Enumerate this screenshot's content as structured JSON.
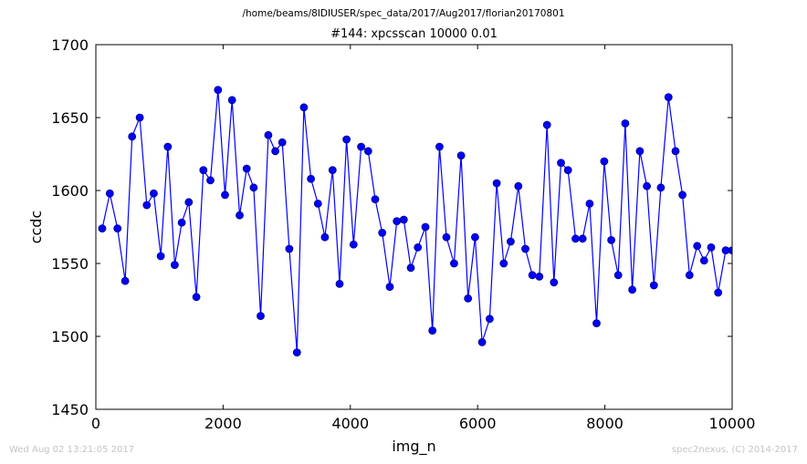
{
  "figure": {
    "suptitle": "/home/beams/8IDIUSER/spec_data/2017/Aug2017/florian20170801",
    "footer_left": "Wed Aug 02 13:21:05 2017",
    "footer_right": "spec2nexus, (C) 2014-2017"
  },
  "colors": {
    "line": "#0000ff",
    "marker_fill": "#0000ff",
    "marker_edge": "#000080",
    "axes": "#000000",
    "footer_text": "#c4c4c4"
  },
  "chart_data": {
    "type": "line",
    "title": "#144: xpcsscan 10000 0.01",
    "xlabel": "img_n",
    "ylabel": "ccdc",
    "xlim": [
      0,
      10000
    ],
    "ylim": [
      1450,
      1700
    ],
    "xticks": [
      0,
      2000,
      4000,
      6000,
      8000,
      10000
    ],
    "yticks": [
      1450,
      1500,
      1550,
      1600,
      1650,
      1700
    ],
    "grid": false,
    "legend": "none",
    "marker": "circle",
    "x": [
      100,
      220,
      340,
      460,
      570,
      690,
      800,
      910,
      1020,
      1130,
      1240,
      1350,
      1460,
      1580,
      1690,
      1800,
      1920,
      2030,
      2140,
      2260,
      2370,
      2480,
      2590,
      2710,
      2820,
      2930,
      3040,
      3160,
      3270,
      3380,
      3490,
      3600,
      3720,
      3830,
      3940,
      4050,
      4170,
      4280,
      4390,
      4500,
      4620,
      4730,
      4840,
      4950,
      5060,
      5180,
      5290,
      5400,
      5510,
      5630,
      5740,
      5850,
      5960,
      6070,
      6190,
      6300,
      6410,
      6520,
      6640,
      6750,
      6860,
      6970,
      7090,
      7200,
      7310,
      7420,
      7540,
      7650,
      7760,
      7870,
      7990,
      8100,
      8210,
      8320,
      8430,
      8550,
      8660,
      8770,
      8880,
      9000,
      9110,
      9220,
      9330,
      9450,
      9560,
      9670,
      9780,
      9900,
      10000
    ],
    "y": [
      1574,
      1598,
      1574,
      1538,
      1637,
      1650,
      1590,
      1598,
      1555,
      1630,
      1549,
      1578,
      1592,
      1527,
      1614,
      1607,
      1669,
      1597,
      1662,
      1583,
      1615,
      1602,
      1514,
      1638,
      1627,
      1633,
      1560,
      1489,
      1657,
      1608,
      1591,
      1568,
      1614,
      1536,
      1635,
      1563,
      1630,
      1627,
      1594,
      1571,
      1534,
      1579,
      1580,
      1547,
      1561,
      1575,
      1504,
      1630,
      1568,
      1550,
      1624,
      1526,
      1568,
      1496,
      1512,
      1605,
      1550,
      1565,
      1603,
      1560,
      1542,
      1541,
      1645,
      1537,
      1619,
      1614,
      1567,
      1567,
      1591,
      1509,
      1620,
      1566,
      1542,
      1646,
      1532,
      1627,
      1603,
      1535,
      1602,
      1664,
      1627,
      1597,
      1542,
      1562,
      1552,
      1561,
      1530,
      1559,
      1559
    ]
  }
}
